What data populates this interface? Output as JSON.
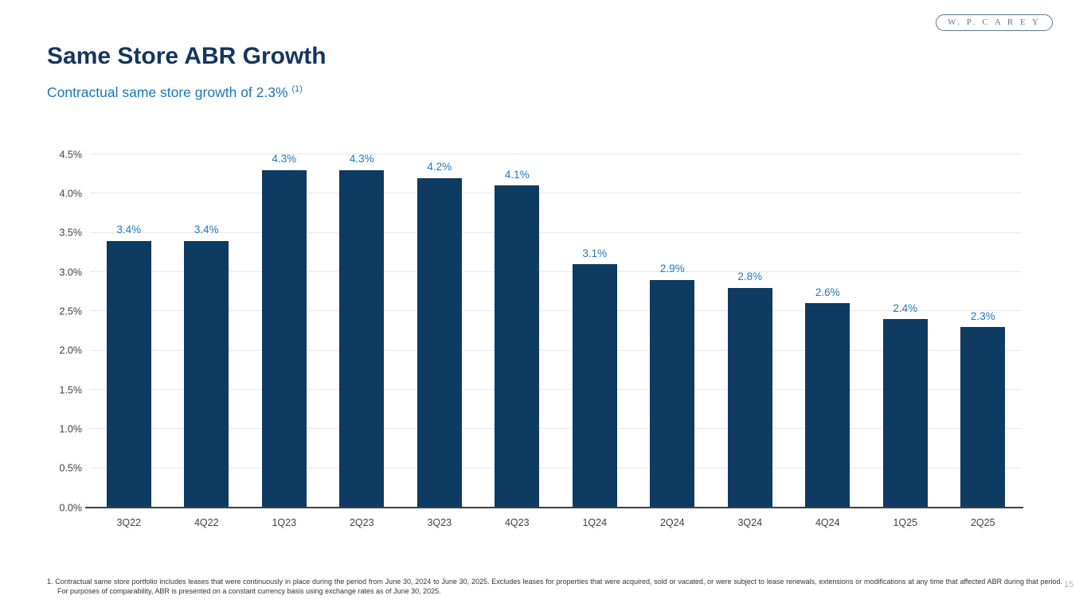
{
  "slide": {
    "title": "Same Store ABR Growth",
    "subtitle": "Contractual same store growth of 2.3% ",
    "subtitle_superscript": "(1)",
    "logo_text": "W. P. C A R E Y",
    "page_number": "15",
    "footnote": "1. Contractual same store portfolio includes leases that were continuously in place during the period from June 30, 2024 to June 30, 2025. Excludes leases for properties that were acquired, sold or vacated, or were subject to lease renewals, extensions or modifications at any time that affected ABR during that period. For purposes of comparability, ABR is presented on a constant currency basis using exchange rates as of June 30, 2025."
  },
  "colors": {
    "bar": "#0e3b61",
    "data_label": "#1a7ac0",
    "title": "#14365f",
    "subtitle": "#1b76bc",
    "logo": "#5b7a90",
    "axis_text": "#3f3f3f",
    "gridline": "#e8e8e8",
    "axis_line": "#404040",
    "page_number": "#b3b3b3"
  },
  "chart_data": {
    "type": "bar",
    "categories": [
      "3Q22",
      "4Q22",
      "1Q23",
      "2Q23",
      "3Q23",
      "4Q23",
      "1Q24",
      "2Q24",
      "3Q24",
      "4Q24",
      "1Q25",
      "2Q25"
    ],
    "values": [
      3.4,
      3.4,
      4.3,
      4.3,
      4.2,
      4.1,
      3.1,
      2.9,
      2.8,
      2.6,
      2.4,
      2.3
    ],
    "data_labels": [
      "3.4%",
      "3.4%",
      "4.3%",
      "4.3%",
      "4.2%",
      "4.1%",
      "3.1%",
      "2.9%",
      "2.8%",
      "2.6%",
      "2.4%",
      "2.3%"
    ],
    "title": "",
    "xlabel": "",
    "ylabel": "",
    "ylim": [
      0,
      4.5
    ],
    "ytick_interval": 0.5,
    "ytick_labels": [
      "0.0%",
      "0.5%",
      "1.0%",
      "1.5%",
      "2.0%",
      "2.5%",
      "3.0%",
      "3.5%",
      "4.0%",
      "4.5%"
    ],
    "grid": true,
    "legend": false
  }
}
